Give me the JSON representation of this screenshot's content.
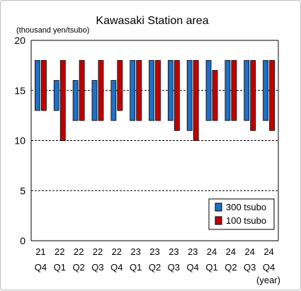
{
  "chart_data": {
    "type": "bar",
    "subtype": "floating-range",
    "title": "Kawasaki Station area",
    "unit_label": "(thousand yen/tsubo)",
    "x_unit_label": "(year)",
    "ylim": [
      0,
      20
    ],
    "yticks": [
      "0",
      "5",
      "10",
      "15",
      "20"
    ],
    "grid": "dashed horizontal at 5, 10, 15",
    "legend_position": "bottom-right inside plot",
    "categories": [
      [
        "21",
        "Q4"
      ],
      [
        "22",
        "Q1"
      ],
      [
        "22",
        "Q2"
      ],
      [
        "22",
        "Q3"
      ],
      [
        "22",
        "Q4"
      ],
      [
        "23",
        "Q1"
      ],
      [
        "23",
        "Q2"
      ],
      [
        "23",
        "Q3"
      ],
      [
        "23",
        "Q4"
      ],
      [
        "24",
        "Q1"
      ],
      [
        "24",
        "Q2"
      ],
      [
        "24",
        "Q3"
      ],
      [
        "24",
        "Q4"
      ]
    ],
    "series": [
      {
        "name": "300 tsubo",
        "color": "#1f6fc5",
        "low": [
          13,
          13,
          12,
          12,
          12,
          12,
          12,
          12,
          11,
          12,
          12,
          12,
          12
        ],
        "high": [
          18,
          16,
          16,
          16,
          16,
          18,
          18,
          18,
          18,
          18,
          18,
          18,
          18
        ]
      },
      {
        "name": "100 tsubo",
        "color": "#c00000",
        "low": [
          13,
          10,
          12,
          12,
          13,
          12,
          12,
          11,
          10,
          12,
          12,
          11,
          11
        ],
        "high": [
          18,
          18,
          18,
          18,
          18,
          18,
          18,
          18,
          18,
          17,
          18,
          18,
          18
        ]
      }
    ]
  }
}
